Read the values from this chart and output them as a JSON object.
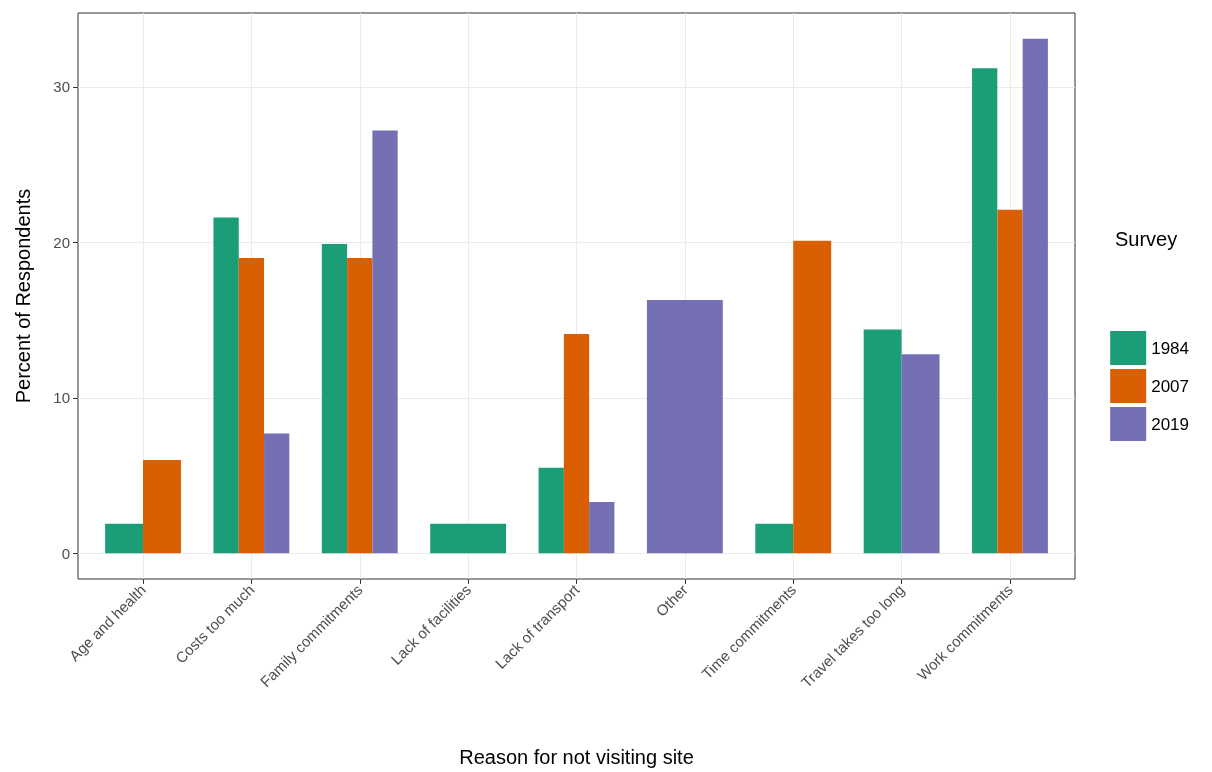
{
  "chart_data": {
    "type": "bar",
    "xlabel": "Reason for not visiting site",
    "ylabel": "Percent of Respondents",
    "legend_title": "Survey",
    "categories": [
      "Age and health",
      "Costs too much",
      "Family commitments",
      "Lack of facilities",
      "Lack of transport",
      "Other",
      "Time commitments",
      "Travel takes too long",
      "Work commitments"
    ],
    "series": [
      {
        "name": "1984",
        "color": "#1b9e77",
        "values": [
          1.9,
          21.6,
          19.9,
          1.9,
          5.5,
          null,
          1.9,
          14.4,
          31.2
        ]
      },
      {
        "name": "2007",
        "color": "#d95f02",
        "values": [
          6.0,
          19.0,
          19.0,
          null,
          14.1,
          null,
          20.1,
          null,
          22.1
        ]
      },
      {
        "name": "2019",
        "color": "#7570b3",
        "values": [
          null,
          7.7,
          27.2,
          null,
          3.3,
          16.3,
          null,
          12.8,
          33.1
        ]
      }
    ],
    "ylim": [
      -1.66,
      34.76
    ],
    "yticks": [
      0,
      10,
      20,
      30
    ],
    "grid": true,
    "legend": "right"
  }
}
